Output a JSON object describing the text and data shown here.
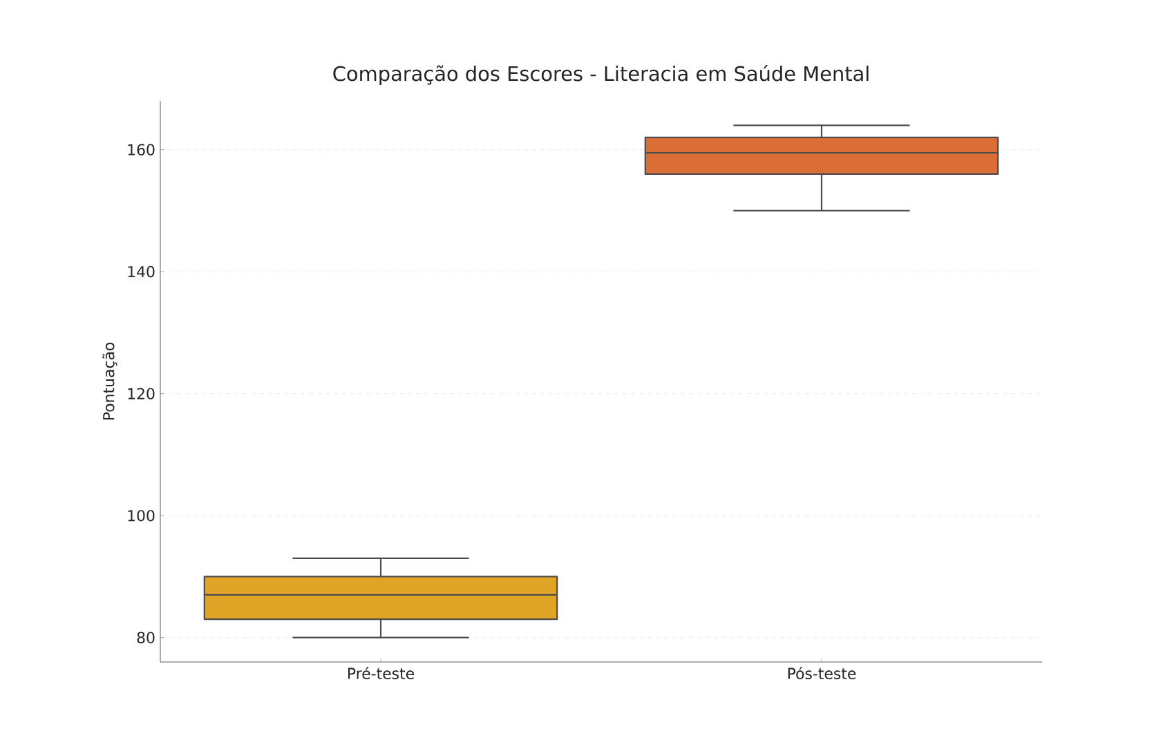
{
  "chart_data": {
    "type": "box",
    "title": "Comparação dos Escores - Literacia em Saúde Mental",
    "ylabel": "Pontuação",
    "categories": [
      "Pré-teste",
      "Pós-teste"
    ],
    "boxes": [
      {
        "low": 80,
        "q1": 83,
        "median": 87,
        "q3": 90,
        "high": 93
      },
      {
        "low": 150,
        "q1": 156,
        "median": 159.5,
        "q3": 162,
        "high": 164
      }
    ],
    "colors": [
      "#e0a526",
      "#db6d36"
    ],
    "ylim": [
      76,
      168
    ],
    "yticks": [
      80,
      100,
      120,
      140,
      160
    ],
    "grid": "y"
  }
}
